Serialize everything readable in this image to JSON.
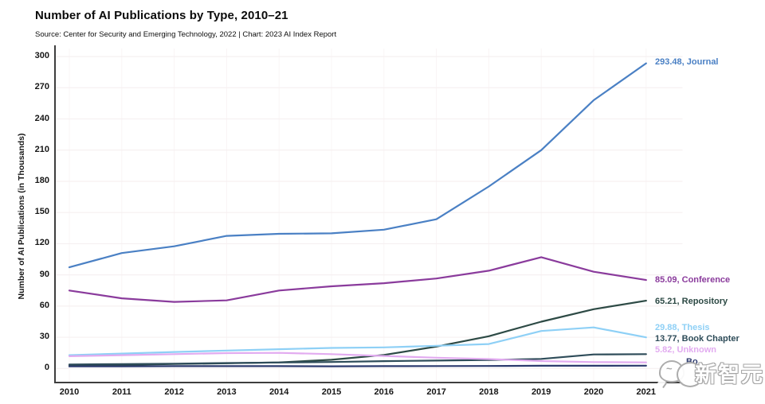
{
  "header": {
    "title": "Number of AI Publications by Type, 2010–21",
    "subtitle": "Source: Center for Security and Emerging Technology, 2022 | Chart: 2023 AI Index Report"
  },
  "watermark": {
    "text": "新智元"
  },
  "chart_data": {
    "type": "line",
    "title": "Number of AI Publications by Type, 2010–21",
    "xlabel": "",
    "ylabel": "Number of AI Publications (in Thousands)",
    "x": [
      2010,
      2011,
      2012,
      2013,
      2014,
      2015,
      2016,
      2017,
      2018,
      2019,
      2020,
      2021
    ],
    "ylim": [
      0,
      300
    ],
    "yticks": [
      0,
      30,
      60,
      90,
      120,
      150,
      180,
      210,
      240,
      270,
      300
    ],
    "grid": true,
    "legend_position": "end-of-line labels, right side",
    "series": [
      {
        "name": "Journal",
        "label": "293.48, Journal",
        "end_value": 293.48,
        "color": "#4a80c4",
        "values": [
          97.3,
          111,
          117.5,
          127.5,
          129.5,
          130,
          133.5,
          143.5,
          175,
          210,
          258,
          293.48
        ]
      },
      {
        "name": "Conference",
        "label": "85.09, Conference",
        "end_value": 85.09,
        "color": "#8a3b9c",
        "values": [
          75,
          67.5,
          64,
          65.5,
          75,
          79,
          82,
          86.5,
          94,
          107,
          93,
          85.09
        ]
      },
      {
        "name": "Repository",
        "label": "65.21, Repository",
        "end_value": 65.21,
        "color": "#2d4a45",
        "values": [
          2.6,
          3.4,
          4.3,
          5.0,
          5.8,
          8.3,
          13,
          21,
          31,
          45,
          57,
          65.21
        ]
      },
      {
        "name": "Thesis",
        "label": "29.88, Thesis",
        "end_value": 29.88,
        "color": "#8ed0f6",
        "values": [
          12.8,
          14.3,
          15.8,
          17.2,
          18.5,
          19.7,
          20.3,
          21.8,
          23.5,
          36,
          39.5,
          29.88
        ]
      },
      {
        "name": "Book Chapter",
        "label": "13.77, Book Chapter",
        "end_value": 13.77,
        "color": "#2e4c59",
        "values": [
          3.8,
          4.2,
          4.6,
          5.2,
          5.7,
          6.2,
          7.0,
          7.6,
          8.2,
          9.2,
          13.5,
          13.77
        ]
      },
      {
        "name": "Unknown",
        "label": "5.82, Unknown",
        "end_value": 5.82,
        "color": "#e2abf0",
        "values": [
          11.8,
          12.8,
          13.8,
          14.8,
          15.0,
          13.8,
          12.0,
          10.3,
          9.0,
          7.1,
          6.1,
          5.82
        ]
      },
      {
        "name": "Book",
        "label": "Bo",
        "color": "#2c3a6e",
        "values": [
          2.0,
          2.1,
          2.2,
          2.2,
          2.2,
          2.1,
          2.2,
          2.3,
          2.4,
          2.6,
          2.6,
          2.7
        ]
      }
    ]
  }
}
